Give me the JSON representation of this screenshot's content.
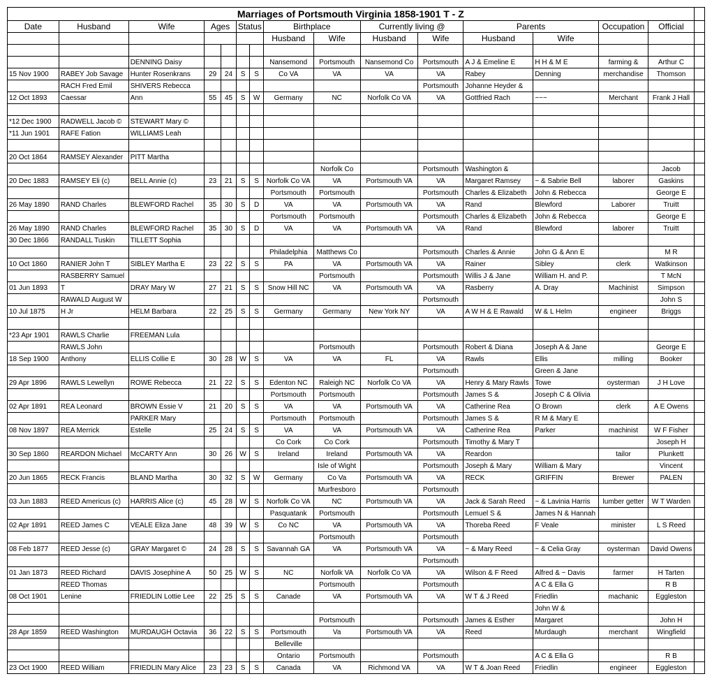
{
  "title": "Marriages of Portsmouth Virginia 1858-1901  T - Z",
  "header_row1": [
    "Date",
    "Husband",
    "Wife",
    "Ages",
    "Status",
    "Birthplace",
    "Currently living @",
    "Parents",
    "Occupation",
    "Official"
  ],
  "header_row2": [
    "Husband",
    "Wife",
    "Husband",
    "Wife",
    "Husband",
    "Wife"
  ],
  "rows": [
    {
      "blank": true
    },
    {
      "date": "",
      "husband": "",
      "wife": "DENNING Daisy",
      "a1": "",
      "a2": "",
      "s1": "",
      "s2": "",
      "bp_h": "Nansemond",
      "bp_w": "Portsmouth",
      "cl_h": "Nansemond Co",
      "cl_w": "Portsmouth",
      "p_h": "A J & Emeline E",
      "p_w": "H H & M E",
      "occ": "farming &",
      "off": "Arthur C"
    },
    {
      "date": "15 Nov 1900",
      "husband": "RABEY Job Savage",
      "wife": "Hunter Rosenkrans",
      "a1": "29",
      "a2": "24",
      "s1": "S",
      "s2": "S",
      "bp_h": "Co VA",
      "bp_w": "VA",
      "cl_h": "VA",
      "cl_w": "VA",
      "p_h": "Rabey",
      "p_w": "Denning",
      "occ": "merchandise",
      "off": "Thomson"
    },
    {
      "date": "",
      "husband": "RACH Fred Emil",
      "wife": "SHIVERS Rebecca",
      "a1": "",
      "a2": "",
      "s1": "",
      "s2": "",
      "bp_h": "",
      "bp_w": "",
      "cl_h": "",
      "cl_w": "Portsmouth",
      "p_h": "Johanne Heyder &",
      "p_w": "",
      "occ": "",
      "off": ""
    },
    {
      "date": "12 Oct 1893",
      "husband": "Caessar",
      "wife": "Ann",
      "a1": "55",
      "a2": "45",
      "s1": "S",
      "s2": "W",
      "bp_h": "Germany",
      "bp_w": "NC",
      "cl_h": "Norfolk Co VA",
      "cl_w": "VA",
      "p_h": "Gottfried Rach",
      "p_w": "~~~",
      "occ": "Merchant",
      "off": "Frank J Hall"
    },
    {
      "blank": true
    },
    {
      "date": "*12 Dec 1900",
      "husband": "RADWELL Jacob ©",
      "wife": "STEWART Mary ©",
      "a1": "",
      "a2": "",
      "s1": "",
      "s2": "",
      "bp_h": "",
      "bp_w": "",
      "cl_h": "",
      "cl_w": "",
      "p_h": "",
      "p_w": "",
      "occ": "",
      "off": ""
    },
    {
      "date": "*11 Jun 1901",
      "husband": "RAFE Fation",
      "wife": "WILLIAMS Leah",
      "a1": "",
      "a2": "",
      "s1": "",
      "s2": "",
      "bp_h": "",
      "bp_w": "",
      "cl_h": "",
      "cl_w": "",
      "p_h": "",
      "p_w": "",
      "occ": "",
      "off": ""
    },
    {
      "blank": true
    },
    {
      "date": "20 Oct 1864",
      "husband": "RAMSEY Alexander",
      "wife": "PITT Martha",
      "a1": "",
      "a2": "",
      "s1": "",
      "s2": "",
      "bp_h": "",
      "bp_w": "",
      "cl_h": "",
      "cl_w": "",
      "p_h": "",
      "p_w": "",
      "occ": "",
      "off": ""
    },
    {
      "date": "",
      "husband": "",
      "wife": "",
      "a1": "",
      "a2": "",
      "s1": "",
      "s2": "",
      "bp_h": "",
      "bp_w": "Norfolk Co",
      "cl_h": "",
      "cl_w": "Portsmouth",
      "p_h": "Washington &",
      "p_w": "",
      "occ": "",
      "off": "Jacob"
    },
    {
      "date": "20 Dec 1883",
      "husband": "RAMSEY Eli (c)",
      "wife": "BELL Annie (c)",
      "a1": "23",
      "a2": "21",
      "s1": "S",
      "s2": "S",
      "bp_h": "Norfolk Co VA",
      "bp_w": "VA",
      "cl_h": "Portsmouth VA",
      "cl_w": "VA",
      "p_h": "Margaret Ramsey",
      "p_w": "~ & Sabrie Bell",
      "occ": "laborer",
      "off": "Gaskins"
    },
    {
      "date": "",
      "husband": "",
      "wife": "",
      "a1": "",
      "a2": "",
      "s1": "",
      "s2": "",
      "bp_h": "Portsmouth",
      "bp_w": "Portsmouth",
      "cl_h": "",
      "cl_w": "Portsmouth",
      "p_h": "Charles & Elizabeth",
      "p_w": "John & Rebecca",
      "occ": "",
      "off": "George E"
    },
    {
      "date": "26 May 1890",
      "husband": "RAND Charles",
      "wife": "BLEWFORD Rachel",
      "a1": "35",
      "a2": "30",
      "s1": "S",
      "s2": "D",
      "bp_h": "VA",
      "bp_w": "VA",
      "cl_h": "Portsmouth VA",
      "cl_w": "VA",
      "p_h": "Rand",
      "p_w": "Blewford",
      "occ": "Laborer",
      "off": "Truitt"
    },
    {
      "date": "",
      "husband": "",
      "wife": "",
      "a1": "",
      "a2": "",
      "s1": "",
      "s2": "",
      "bp_h": "Portsmouth",
      "bp_w": "Portsmouth",
      "cl_h": "",
      "cl_w": "Portsmouth",
      "p_h": "Charles & Elizabeth",
      "p_w": "John & Rebecca",
      "occ": "",
      "off": "George E"
    },
    {
      "date": "26 May 1890",
      "husband": "RAND Charles",
      "wife": "BLEWFORD Rachel",
      "a1": "35",
      "a2": "30",
      "s1": "S",
      "s2": "D",
      "bp_h": "VA",
      "bp_w": "VA",
      "cl_h": "Portsmouth VA",
      "cl_w": "VA",
      "p_h": "Rand",
      "p_w": "Blewford",
      "occ": "laborer",
      "off": "Truitt"
    },
    {
      "date": "30 Dec 1866",
      "husband": "RANDALL Tuskin",
      "wife": "TILLETT Sophia",
      "a1": "",
      "a2": "",
      "s1": "",
      "s2": "",
      "bp_h": "",
      "bp_w": "",
      "cl_h": "",
      "cl_w": "",
      "p_h": "",
      "p_w": "",
      "occ": "",
      "off": ""
    },
    {
      "date": "",
      "husband": "",
      "wife": "",
      "a1": "",
      "a2": "",
      "s1": "",
      "s2": "",
      "bp_h": "Philadelphia",
      "bp_w": "Matthews Co",
      "cl_h": "",
      "cl_w": "Portsmouth",
      "p_h": "Charles & Annie",
      "p_w": "John G & Ann E",
      "occ": "",
      "off": "M R"
    },
    {
      "date": "10 Oct 1860",
      "husband": "RANIER John T",
      "wife": "SIBLEY Martha E",
      "a1": "23",
      "a2": "22",
      "s1": "S",
      "s2": "S",
      "bp_h": "PA",
      "bp_w": "VA",
      "cl_h": "Portsmouth VA",
      "cl_w": "VA",
      "p_h": "Rainer",
      "p_w": "Sibley",
      "occ": "clerk",
      "off": "Watkinson"
    },
    {
      "date": "",
      "husband": "RASBERRY Samuel",
      "wife": "",
      "a1": "",
      "a2": "",
      "s1": "",
      "s2": "",
      "bp_h": "",
      "bp_w": "Portsmouth",
      "cl_h": "",
      "cl_w": "Portsmouth",
      "p_h": "Willis J & Jane",
      "p_w": "William H. and P.",
      "occ": "",
      "off": "T McN"
    },
    {
      "date": "01 Jun 1893",
      "husband": "T",
      "wife": "DRAY Mary W",
      "a1": "27",
      "a2": "21",
      "s1": "S",
      "s2": "S",
      "bp_h": "Snow Hill NC",
      "bp_w": "VA",
      "cl_h": "Portsmouth VA",
      "cl_w": "VA",
      "p_h": "Rasberry",
      "p_w": "A. Dray",
      "occ": "Machinist",
      "off": "Simpson"
    },
    {
      "date": "",
      "husband": "RAWALD August W",
      "wife": "",
      "a1": "",
      "a2": "",
      "s1": "",
      "s2": "",
      "bp_h": "",
      "bp_w": "",
      "cl_h": "",
      "cl_w": "Portsmouth",
      "p_h": "",
      "p_w": "",
      "occ": "",
      "off": "John S"
    },
    {
      "date": "10 Jul 1875",
      "husband": "H Jr",
      "wife": "HELM Barbara",
      "a1": "22",
      "a2": "25",
      "s1": "S",
      "s2": "S",
      "bp_h": "Germany",
      "bp_w": "Germany",
      "cl_h": "New York NY",
      "cl_w": "VA",
      "p_h": "A W H & E Rawald",
      "p_w": "W & L Helm",
      "occ": "engineer",
      "off": "Briggs"
    },
    {
      "blank": true
    },
    {
      "date": "*23 Apr 1901",
      "husband": "RAWLS Charlie",
      "wife": "FREEMAN Lula",
      "a1": "",
      "a2": "",
      "s1": "",
      "s2": "",
      "bp_h": "",
      "bp_w": "",
      "cl_h": "",
      "cl_w": "",
      "p_h": "",
      "p_w": "",
      "occ": "",
      "off": ""
    },
    {
      "date": "",
      "husband": "RAWLS John",
      "wife": "",
      "a1": "",
      "a2": "",
      "s1": "",
      "s2": "",
      "bp_h": "",
      "bp_w": "Portsmouth",
      "cl_h": "",
      "cl_w": "Portsmouth",
      "p_h": "Robert & Diana",
      "p_w": "Joseph A & Jane",
      "occ": "",
      "off": "George E"
    },
    {
      "date": "18 Sep 1900",
      "husband": "Anthony",
      "wife": "ELLIS Collie E",
      "a1": "30",
      "a2": "28",
      "s1": "W",
      "s2": "S",
      "bp_h": "VA",
      "bp_w": "VA",
      "cl_h": "FL",
      "cl_w": "VA",
      "p_h": "Rawls",
      "p_w": "Ellis",
      "occ": "milling",
      "off": "Booker"
    },
    {
      "date": "",
      "husband": "",
      "wife": "",
      "a1": "",
      "a2": "",
      "s1": "",
      "s2": "",
      "bp_h": "",
      "bp_w": "",
      "cl_h": "",
      "cl_w": "Portsmouth",
      "p_h": "",
      "p_w": "Green & Jane",
      "occ": "",
      "off": ""
    },
    {
      "date": "29 Apr 1896",
      "husband": "RAWLS Lewellyn",
      "wife": "ROWE Rebecca",
      "a1": "21",
      "a2": "22",
      "s1": "S",
      "s2": "S",
      "bp_h": "Edenton NC",
      "bp_w": "Raleigh NC",
      "cl_h": "Norfolk Co VA",
      "cl_w": "VA",
      "p_h": "Henry & Mary Rawls",
      "p_w": "Towe",
      "occ": "oysterman",
      "off": "J H Love"
    },
    {
      "date": "",
      "husband": "",
      "wife": "",
      "a1": "",
      "a2": "",
      "s1": "",
      "s2": "",
      "bp_h": "Portsmouth",
      "bp_w": "Portsmouth",
      "cl_h": "",
      "cl_w": "Portsmouth",
      "p_h": "James S &",
      "p_w": "Joseph C & Olivia",
      "occ": "",
      "off": ""
    },
    {
      "date": "02 Apr 1891",
      "husband": "REA Leonard",
      "wife": "BROWN Essie V",
      "a1": "21",
      "a2": "20",
      "s1": "S",
      "s2": "S",
      "bp_h": "VA",
      "bp_w": "VA",
      "cl_h": "Portsmouth VA",
      "cl_w": "VA",
      "p_h": "Catherine Rea",
      "p_w": "O Brown",
      "occ": "clerk",
      "off": "A E Owens"
    },
    {
      "date": "",
      "husband": "",
      "wife": "PARKER Mary",
      "a1": "",
      "a2": "",
      "s1": "",
      "s2": "",
      "bp_h": "Portsmouth",
      "bp_w": "Portsmouth",
      "cl_h": "",
      "cl_w": "Portsmouth",
      "p_h": "James S &",
      "p_w": "R M & Mary E",
      "occ": "",
      "off": ""
    },
    {
      "date": "08 Nov 1897",
      "husband": "REA Merrick",
      "wife": "Estelle",
      "a1": "25",
      "a2": "24",
      "s1": "S",
      "s2": "S",
      "bp_h": "VA",
      "bp_w": "VA",
      "cl_h": "Portsmouth VA",
      "cl_w": "VA",
      "p_h": "Catherine Rea",
      "p_w": "Parker",
      "occ": "machinist",
      "off": "W F Fisher"
    },
    {
      "date": "",
      "husband": "",
      "wife": "",
      "a1": "",
      "a2": "",
      "s1": "",
      "s2": "",
      "bp_h": "Co Cork",
      "bp_w": "Co Cork",
      "cl_h": "",
      "cl_w": "Portsmouth",
      "p_h": "Timothy & Mary T",
      "p_w": "",
      "occ": "",
      "off": "Joseph H"
    },
    {
      "date": "30 Sep 1860",
      "husband": "REARDON Michael",
      "wife": "McCARTY Ann",
      "a1": "30",
      "a2": "26",
      "s1": "W",
      "s2": "S",
      "bp_h": "Ireland",
      "bp_w": "Ireland",
      "cl_h": "Portsmouth VA",
      "cl_w": "VA",
      "p_h": "Reardon",
      "p_w": "",
      "occ": "tailor",
      "off": "Plunkett"
    },
    {
      "date": "",
      "husband": "",
      "wife": "",
      "a1": "",
      "a2": "",
      "s1": "",
      "s2": "",
      "bp_h": "",
      "bp_w": "Isle of Wight",
      "cl_h": "",
      "cl_w": "Portsmouth",
      "p_h": "Joseph & Mary",
      "p_w": "William & Mary",
      "occ": "",
      "off": "Vincent"
    },
    {
      "date": "20 Jun 1865",
      "husband": "RECK Francis",
      "wife": "BLAND Martha",
      "a1": "30",
      "a2": "32",
      "s1": "S",
      "s2": "W",
      "bp_h": "Germany",
      "bp_w": "Co Va",
      "cl_h": "Portsmouth VA",
      "cl_w": "VA",
      "p_h": "RECK",
      "p_w": "GRIFFIN",
      "occ": "Brewer",
      "off": "PALEN"
    },
    {
      "date": "",
      "husband": "",
      "wife": "",
      "a1": "",
      "a2": "",
      "s1": "",
      "s2": "",
      "bp_h": "",
      "bp_w": "Murfresboro",
      "cl_h": "",
      "cl_w": "Portsmouth",
      "p_h": "",
      "p_w": "",
      "occ": "",
      "off": ""
    },
    {
      "date": "03 Jun 1883",
      "husband": "REED Americus (c)",
      "wife": "HARRIS Alice (c)",
      "a1": "45",
      "a2": "28",
      "s1": "W",
      "s2": "S",
      "bp_h": "Norfolk Co VA",
      "bp_w": "NC",
      "cl_h": "Portsmouth VA",
      "cl_w": "VA",
      "p_h": "Jack & Sarah Reed",
      "p_w": "~ & Lavinia Harris",
      "occ": "lumber getter",
      "off": "W T Warden"
    },
    {
      "date": "",
      "husband": "",
      "wife": "",
      "a1": "",
      "a2": "",
      "s1": "",
      "s2": "",
      "bp_h": "Pasquatank",
      "bp_w": "Portsmouth",
      "cl_h": "",
      "cl_w": "Portsmouth",
      "p_h": "Lemuel S &",
      "p_w": "James N & Hannah",
      "occ": "",
      "off": ""
    },
    {
      "date": "02 Apr 1891",
      "husband": "REED James C",
      "wife": "VEALE Eliza Jane",
      "a1": "48",
      "a2": "39",
      "s1": "W",
      "s2": "S",
      "bp_h": "Co NC",
      "bp_w": "VA",
      "cl_h": "Portsmouth VA",
      "cl_w": "VA",
      "p_h": "Thoreba Reed",
      "p_w": "F Veale",
      "occ": "minister",
      "off": "L S Reed"
    },
    {
      "date": "",
      "husband": "",
      "wife": "",
      "a1": "",
      "a2": "",
      "s1": "",
      "s2": "",
      "bp_h": "",
      "bp_w": "Portsmouth",
      "cl_h": "",
      "cl_w": "Portsmouth",
      "p_h": "",
      "p_w": "",
      "occ": "",
      "off": ""
    },
    {
      "date": "08 Feb 1877",
      "husband": "REED Jesse (c)",
      "wife": "GRAY Margaret ©",
      "a1": "24",
      "a2": "28",
      "s1": "S",
      "s2": "S",
      "bp_h": "Savannah GA",
      "bp_w": "VA",
      "cl_h": "Portsmouth VA",
      "cl_w": "VA",
      "p_h": "~ & Mary Reed",
      "p_w": "~ & Celia Gray",
      "occ": "oysterman",
      "off": "David Owens"
    },
    {
      "date": "",
      "husband": "",
      "wife": "",
      "a1": "",
      "a2": "",
      "s1": "",
      "s2": "",
      "bp_h": "",
      "bp_w": "",
      "cl_h": "",
      "cl_w": "Portsmouth",
      "p_h": "",
      "p_w": "",
      "occ": "",
      "off": ""
    },
    {
      "date": "01 Jan 1873",
      "husband": "REED Richard",
      "wife": "DAVIS Josephine A",
      "a1": "50",
      "a2": "25",
      "s1": "W",
      "s2": "S",
      "bp_h": "NC",
      "bp_w": "Norfolk VA",
      "cl_h": "Norfolk Co VA",
      "cl_w": "VA",
      "p_h": "Wilson & F Reed",
      "p_w": "Alfred & ~ Davis",
      "occ": "farmer",
      "off": "H Tarten"
    },
    {
      "date": "",
      "husband": "REED Thomas",
      "wife": "",
      "a1": "",
      "a2": "",
      "s1": "",
      "s2": "",
      "bp_h": "",
      "bp_w": "Portsmouth",
      "cl_h": "",
      "cl_w": "Portsmouth",
      "p_h": "",
      "p_w": "A C & Ella G",
      "occ": "",
      "off": "R B"
    },
    {
      "date": "08 Oct  1901",
      "husband": "Lenine",
      "wife": "FRIEDLIN Lottie Lee",
      "a1": "22",
      "a2": "25",
      "s1": "S",
      "s2": "S",
      "bp_h": "Canade",
      "bp_w": "VA",
      "cl_h": "Portsmouth VA",
      "cl_w": "VA",
      "p_h": "W T & J Reed",
      "p_w": "Friedlin",
      "occ": "machanic",
      "off": "Eggleston"
    },
    {
      "date": "",
      "husband": "",
      "wife": "",
      "a1": "",
      "a2": "",
      "s1": "",
      "s2": "",
      "bp_h": "",
      "bp_w": "",
      "cl_h": "",
      "cl_w": "",
      "p_h": "",
      "p_w": "John W &",
      "occ": "",
      "off": ""
    },
    {
      "date": "",
      "husband": "",
      "wife": "",
      "a1": "",
      "a2": "",
      "s1": "",
      "s2": "",
      "bp_h": "",
      "bp_w": "Portsmouth",
      "cl_h": "",
      "cl_w": "Portsmouth",
      "p_h": "James & Esther",
      "p_w": "Margaret",
      "occ": "",
      "off": "John H"
    },
    {
      "date": "28 Apr 1859",
      "husband": "REED Washington",
      "wife": "MURDAUGH Octavia",
      "a1": "36",
      "a2": "22",
      "s1": "S",
      "s2": "S",
      "bp_h": "Portsmouth",
      "bp_w": "Va",
      "cl_h": "Portsmouth VA",
      "cl_w": "VA",
      "p_h": "Reed",
      "p_w": "Murdaugh",
      "occ": "merchant",
      "off": "Wingfield"
    },
    {
      "date": "",
      "husband": "",
      "wife": "",
      "a1": "",
      "a2": "",
      "s1": "",
      "s2": "",
      "bp_h": "Belleville",
      "bp_w": "",
      "cl_h": "",
      "cl_w": "",
      "p_h": "",
      "p_w": "",
      "occ": "",
      "off": ""
    },
    {
      "date": "",
      "husband": "",
      "wife": "",
      "a1": "",
      "a2": "",
      "s1": "",
      "s2": "",
      "bp_h": "Ontario",
      "bp_w": "Portsmouth",
      "cl_h": "",
      "cl_w": "Portsmouth",
      "p_h": "",
      "p_w": "A C & Ella G",
      "occ": "",
      "off": "R B"
    },
    {
      "date": "23 Oct 1900",
      "husband": "REED William",
      "wife": "FRIEDLIN Mary Alice",
      "a1": "23",
      "a2": "23",
      "s1": "S",
      "s2": "S",
      "bp_h": "Canada",
      "bp_w": "VA",
      "cl_h": "Richmond VA",
      "cl_w": "VA",
      "p_h": "W T & Joan Reed",
      "p_w": "Friedlin",
      "occ": "engineer",
      "off": "Eggleston"
    }
  ]
}
